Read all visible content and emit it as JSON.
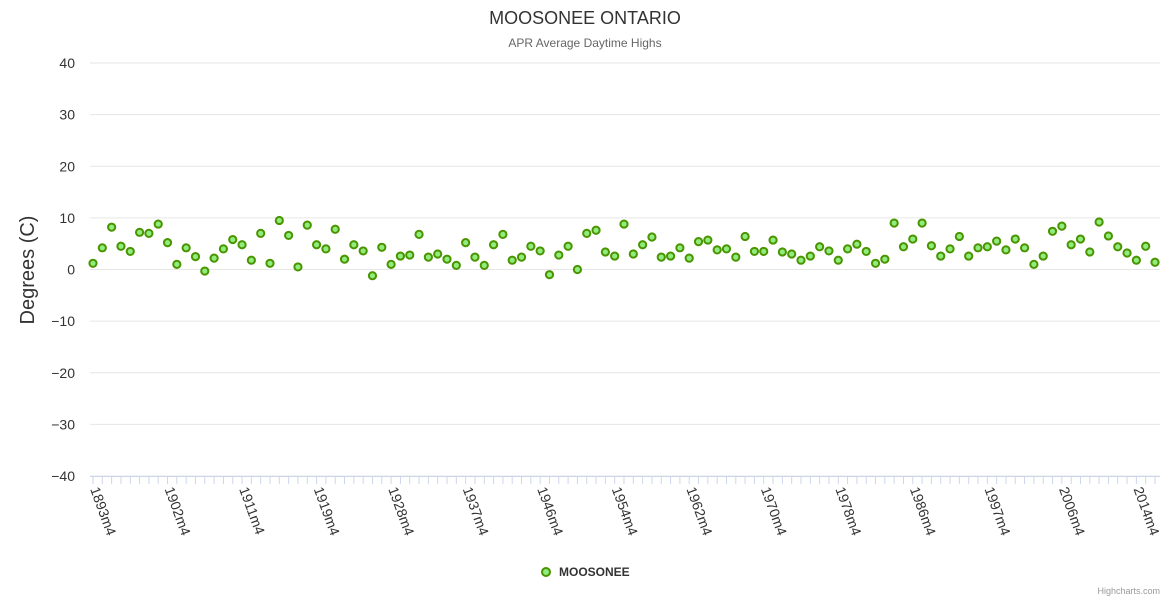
{
  "chart_data": {
    "type": "scatter",
    "title": "MOOSONEE ONTARIO",
    "subtitle": "APR Average Daytime Highs",
    "ylabel": "Degrees (C)",
    "xlabel": "",
    "ylim": [
      -40,
      40
    ],
    "yticks": [
      40,
      30,
      20,
      10,
      0,
      -10,
      -20,
      -30,
      -40
    ],
    "start_year": 1893,
    "x_tick_labels": [
      {
        "index": 0,
        "label": "1893m4"
      },
      {
        "index": 8,
        "label": "1902m4"
      },
      {
        "index": 16,
        "label": "1911m4"
      },
      {
        "index": 24,
        "label": "1919m4"
      },
      {
        "index": 32,
        "label": "1928m4"
      },
      {
        "index": 40,
        "label": "1937m4"
      },
      {
        "index": 48,
        "label": "1946m4"
      },
      {
        "index": 56,
        "label": "1954m4"
      },
      {
        "index": 64,
        "label": "1962m4"
      },
      {
        "index": 72,
        "label": "1970m4"
      },
      {
        "index": 80,
        "label": "1978m4"
      },
      {
        "index": 88,
        "label": "1986m4"
      },
      {
        "index": 96,
        "label": "1997m4"
      },
      {
        "index": 104,
        "label": "2006m4"
      },
      {
        "index": 112,
        "label": "2014m4"
      }
    ],
    "series": [
      {
        "name": "MOOSONEE",
        "color": "#90ed7d",
        "stroke": "#4a9400",
        "values": [
          1.2,
          4.2,
          8.2,
          4.5,
          3.5,
          7.2,
          7.0,
          8.8,
          5.2,
          1.0,
          4.2,
          2.5,
          -0.3,
          2.2,
          4.0,
          5.8,
          4.8,
          1.8,
          7.0,
          1.2,
          9.5,
          6.6,
          0.5,
          8.6,
          4.8,
          4.0,
          7.8,
          2.0,
          4.8,
          3.6,
          -1.2,
          4.3,
          1.0,
          2.6,
          2.8,
          6.8,
          2.4,
          3.0,
          2.0,
          0.8,
          5.2,
          2.4,
          0.8,
          4.8,
          6.8,
          1.8,
          2.4,
          4.5,
          3.6,
          -1.0,
          2.8,
          4.5,
          0.0,
          7.0,
          7.6,
          3.4,
          2.6,
          8.8,
          3.0,
          4.8,
          6.3,
          2.4,
          2.6,
          4.2,
          2.2,
          5.4,
          5.7,
          3.8,
          4.0,
          2.4,
          6.4,
          3.5,
          3.5,
          5.7,
          3.4,
          3.0,
          1.8,
          2.6,
          4.4,
          3.6,
          1.8,
          4.0,
          4.9,
          3.5,
          1.2,
          2.0,
          9.0,
          4.4,
          5.9,
          9.0,
          4.6,
          2.6,
          4.0,
          6.4,
          2.6,
          4.2,
          4.4,
          5.5,
          3.8,
          5.9,
          4.2,
          1.0,
          2.6,
          7.4,
          8.4,
          4.8,
          5.9,
          3.4,
          9.2,
          6.5,
          4.4,
          3.2,
          1.8,
          4.5,
          1.4
        ]
      }
    ],
    "legend": {
      "label": "MOOSONEE",
      "position": "bottom-center"
    },
    "credits": "Highcharts.com"
  }
}
